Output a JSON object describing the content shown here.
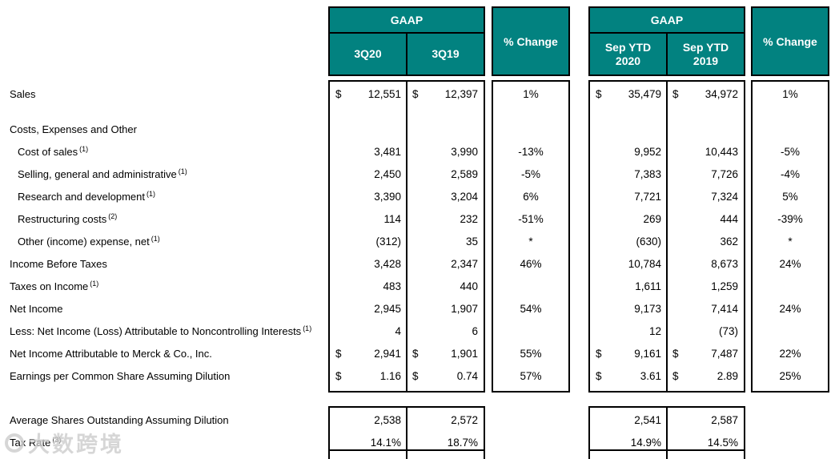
{
  "colors": {
    "teal": "#028280",
    "border": "#000000",
    "header_text": "#ffffff"
  },
  "header": {
    "group1": {
      "title": "GAAP",
      "col1": "3Q20",
      "col2": "3Q19"
    },
    "pct1": "% Change",
    "group2": {
      "title": "GAAP",
      "col1": "Sep YTD 2020",
      "col2": "Sep YTD 2019"
    },
    "pct2": "% Change"
  },
  "rows": [
    {
      "label": "Sales",
      "sup": "",
      "d1": "$",
      "v1": "12,551",
      "d2": "$",
      "v2": "12,397",
      "c1": "1%",
      "d3": "$",
      "v3": "35,479",
      "d4": "$",
      "v4": "34,972",
      "c2": "1%",
      "indent": false,
      "gap": false
    },
    {
      "label": "Costs, Expenses and Other",
      "sup": "",
      "d1": "",
      "v1": "",
      "d2": "",
      "v2": "",
      "c1": "",
      "d3": "",
      "v3": "",
      "d4": "",
      "v4": "",
      "c2": "",
      "indent": false,
      "gap": true
    },
    {
      "label": "Cost of sales",
      "sup": "(1)",
      "d1": "",
      "v1": "3,481",
      "d2": "",
      "v2": "3,990",
      "c1": "-13%",
      "d3": "",
      "v3": "9,952",
      "d4": "",
      "v4": "10,443",
      "c2": "-5%",
      "indent": true,
      "gap": false
    },
    {
      "label": "Selling, general and administrative",
      "sup": "(1)",
      "d1": "",
      "v1": "2,450",
      "d2": "",
      "v2": "2,589",
      "c1": "-5%",
      "d3": "",
      "v3": "7,383",
      "d4": "",
      "v4": "7,726",
      "c2": "-4%",
      "indent": true,
      "gap": false
    },
    {
      "label": "Research and development",
      "sup": "(1)",
      "d1": "",
      "v1": "3,390",
      "d2": "",
      "v2": "3,204",
      "c1": "6%",
      "d3": "",
      "v3": "7,721",
      "d4": "",
      "v4": "7,324",
      "c2": "5%",
      "indent": true,
      "gap": false
    },
    {
      "label": "Restructuring costs",
      "sup": "(2)",
      "d1": "",
      "v1": "114",
      "d2": "",
      "v2": "232",
      "c1": "-51%",
      "d3": "",
      "v3": "269",
      "d4": "",
      "v4": "444",
      "c2": "-39%",
      "indent": true,
      "gap": false
    },
    {
      "label": "Other (income) expense, net",
      "sup": "(1)",
      "d1": "",
      "v1": "(312)",
      "d2": "",
      "v2": "35",
      "c1": "*",
      "d3": "",
      "v3": "(630)",
      "d4": "",
      "v4": "362",
      "c2": "*",
      "indent": true,
      "gap": false
    },
    {
      "label": "Income Before Taxes",
      "sup": "",
      "d1": "",
      "v1": "3,428",
      "d2": "",
      "v2": "2,347",
      "c1": "46%",
      "d3": "",
      "v3": "10,784",
      "d4": "",
      "v4": "8,673",
      "c2": "24%",
      "indent": false,
      "gap": false
    },
    {
      "label": "Taxes on Income",
      "sup": "(1)",
      "d1": "",
      "v1": "483",
      "d2": "",
      "v2": "440",
      "c1": "",
      "d3": "",
      "v3": "1,611",
      "d4": "",
      "v4": "1,259",
      "c2": "",
      "indent": false,
      "gap": false
    },
    {
      "label": "Net Income",
      "sup": "",
      "d1": "",
      "v1": "2,945",
      "d2": "",
      "v2": "1,907",
      "c1": "54%",
      "d3": "",
      "v3": "9,173",
      "d4": "",
      "v4": "7,414",
      "c2": "24%",
      "indent": false,
      "gap": false
    },
    {
      "label": "Less: Net Income (Loss) Attributable to Noncontrolling Interests",
      "sup": "(1)",
      "d1": "",
      "v1": "4",
      "d2": "",
      "v2": "6",
      "c1": "",
      "d3": "",
      "v3": "12",
      "d4": "",
      "v4": "(73)",
      "c2": "",
      "indent": false,
      "gap": false
    },
    {
      "label": "Net Income Attributable to Merck & Co., Inc.",
      "sup": "",
      "d1": "$",
      "v1": "2,941",
      "d2": "$",
      "v2": "1,901",
      "c1": "55%",
      "d3": "$",
      "v3": "9,161",
      "d4": "$",
      "v4": "7,487",
      "c2": "22%",
      "indent": false,
      "gap": false
    },
    {
      "label": "Earnings per Common Share Assuming Dilution",
      "sup": "",
      "d1": "$",
      "v1": "1.16",
      "d2": "$",
      "v2": "0.74",
      "c1": "57%",
      "d3": "$",
      "v3": "3.61",
      "d4": "$",
      "v4": "2.89",
      "c2": "25%",
      "indent": false,
      "gap": false
    }
  ],
  "bottom_rows": [
    {
      "label": "Average Shares Outstanding Assuming Dilution",
      "sup": "",
      "d1": "",
      "v1": "2,538",
      "d2": "",
      "v2": "2,572",
      "d3": "",
      "v3": "2,541",
      "d4": "",
      "v4": "2,587",
      "indent": false,
      "gap": false
    },
    {
      "label": "Tax Rate",
      "sup": "(3)",
      "d1": "",
      "v1": "14.1%",
      "d2": "",
      "v2": "18.7%",
      "d3": "",
      "v3": "14.9%",
      "d4": "",
      "v4": "14.5%",
      "indent": false,
      "gap": false
    }
  ],
  "watermark": {
    "text": "大数跨境"
  }
}
